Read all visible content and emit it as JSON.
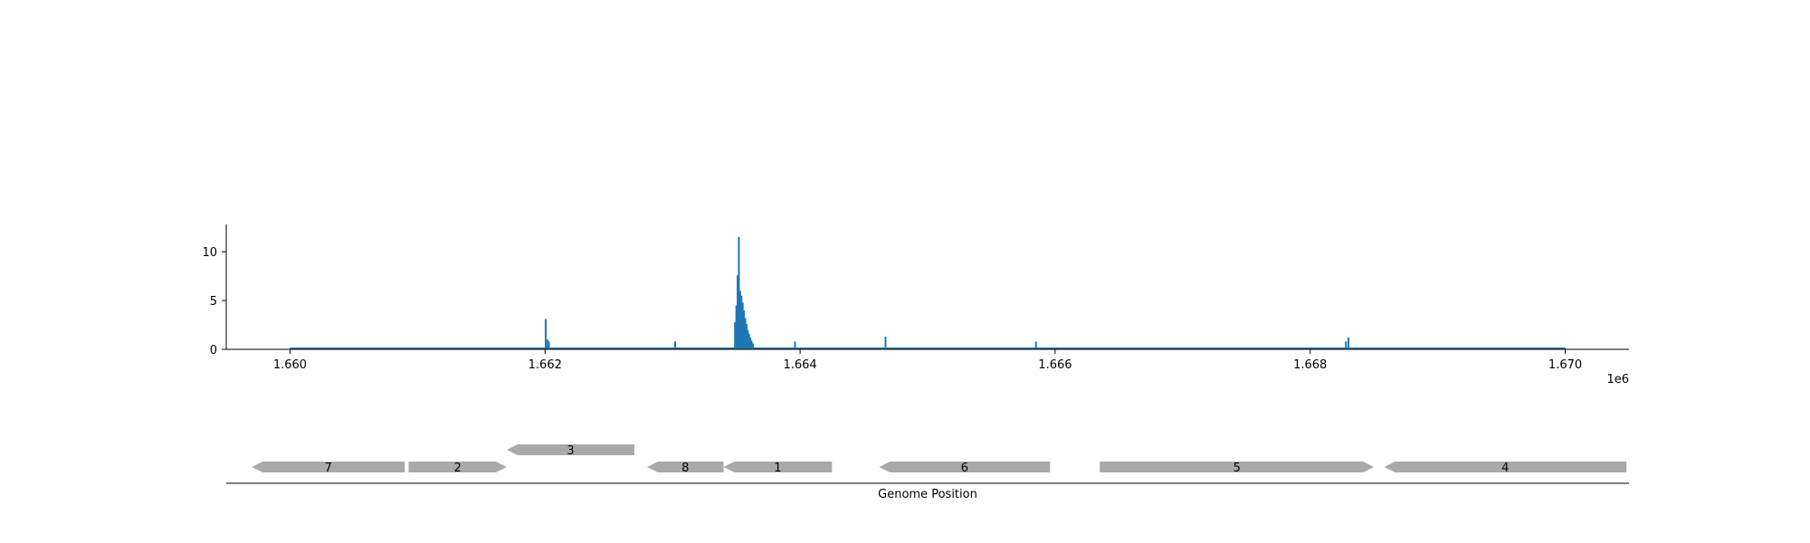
{
  "chart_data": [
    {
      "type": "bar",
      "title": "",
      "xlabel": "",
      "ylabel": "",
      "x_offset_label": "1e6",
      "xlim": [
        1659500,
        1670500
      ],
      "ylim": [
        0,
        12.8
      ],
      "x_ticks": [
        1660000,
        1662000,
        1664000,
        1666000,
        1668000,
        1670000
      ],
      "x_tick_labels": [
        "1.660",
        "1.662",
        "1.664",
        "1.666",
        "1.668",
        "1.670"
      ],
      "y_ticks": [
        0,
        5,
        10
      ],
      "y_tick_labels": [
        "0",
        "5",
        "10"
      ],
      "baseline": {
        "x_start": 1660000,
        "x_end": 1670000
      },
      "series": [
        {
          "color": "#1f77b4",
          "points": [
            {
              "x": 1662005,
              "y": 3.1
            },
            {
              "x": 1662020,
              "y": 1.0
            },
            {
              "x": 1662030,
              "y": 0.8
            },
            {
              "x": 1663020,
              "y": 0.8
            },
            {
              "x": 1663490,
              "y": 2.8
            },
            {
              "x": 1663500,
              "y": 4.5
            },
            {
              "x": 1663510,
              "y": 7.6
            },
            {
              "x": 1663520,
              "y": 11.5
            },
            {
              "x": 1663530,
              "y": 6.0
            },
            {
              "x": 1663540,
              "y": 5.5
            },
            {
              "x": 1663550,
              "y": 4.8
            },
            {
              "x": 1663560,
              "y": 4.0
            },
            {
              "x": 1663570,
              "y": 3.2
            },
            {
              "x": 1663580,
              "y": 2.6
            },
            {
              "x": 1663590,
              "y": 2.0
            },
            {
              "x": 1663600,
              "y": 1.6
            },
            {
              "x": 1663610,
              "y": 1.2
            },
            {
              "x": 1663620,
              "y": 0.9
            },
            {
              "x": 1663630,
              "y": 0.6
            },
            {
              "x": 1663960,
              "y": 0.8
            },
            {
              "x": 1664670,
              "y": 1.3
            },
            {
              "x": 1665850,
              "y": 0.8
            },
            {
              "x": 1668280,
              "y": 0.8
            },
            {
              "x": 1668300,
              "y": 1.2
            }
          ]
        }
      ]
    },
    {
      "type": "gene-track",
      "xlabel": "Genome Position",
      "feature_color": "#a9a9a9",
      "genes": [
        {
          "label": "7",
          "start": 1659700,
          "end": 1660900,
          "strand": "-",
          "row": 0
        },
        {
          "label": "2",
          "start": 1660930,
          "end": 1661700,
          "strand": "+",
          "row": 0
        },
        {
          "label": "3",
          "start": 1661700,
          "end": 1662700,
          "strand": "-",
          "row": 1
        },
        {
          "label": "8",
          "start": 1662800,
          "end": 1663400,
          "strand": "-",
          "row": 0
        },
        {
          "label": "1",
          "start": 1663400,
          "end": 1664250,
          "strand": "-",
          "row": 0
        },
        {
          "label": "6",
          "start": 1664620,
          "end": 1665960,
          "strand": "-",
          "row": 0
        },
        {
          "label": "5",
          "start": 1666350,
          "end": 1668500,
          "strand": "+",
          "row": 0
        },
        {
          "label": "4",
          "start": 1668580,
          "end": 1670480,
          "strand": "-",
          "row": 0
        }
      ]
    }
  ]
}
